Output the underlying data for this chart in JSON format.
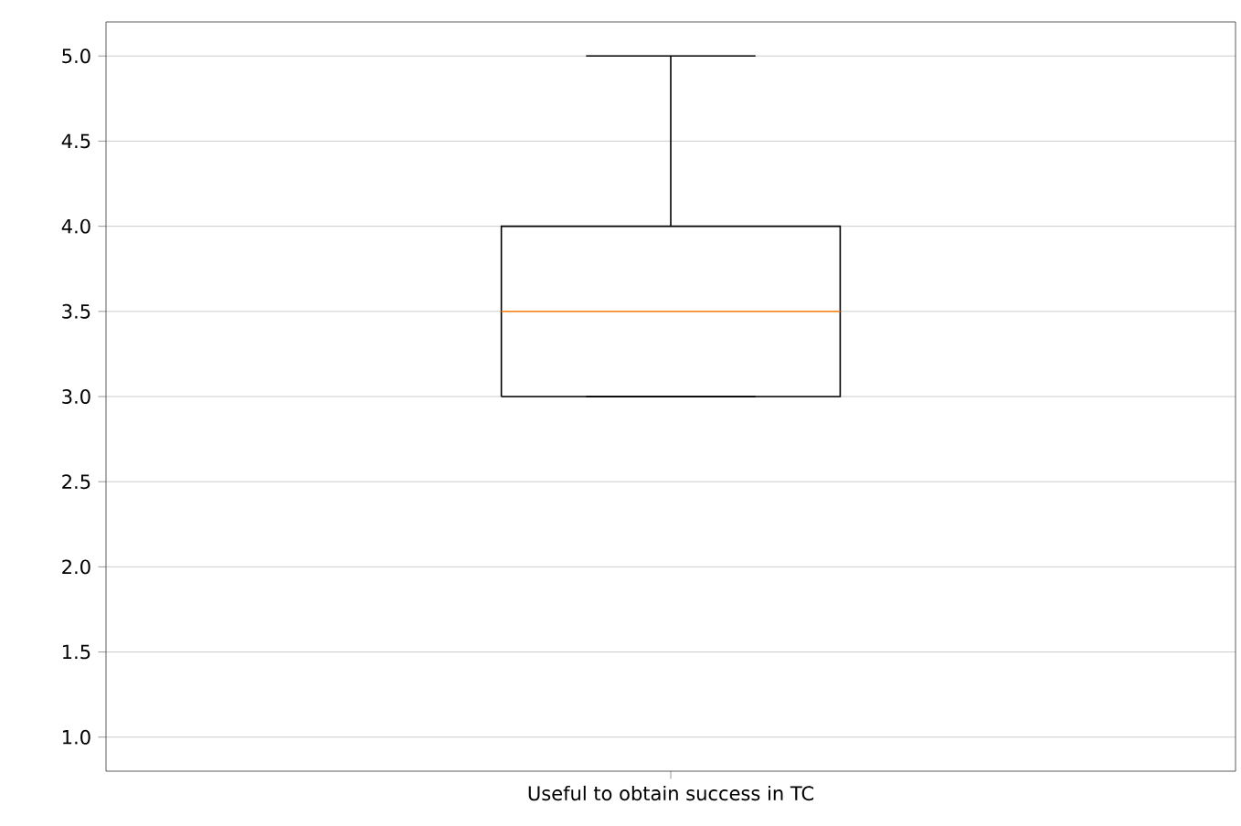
{
  "chart_data": {
    "type": "box",
    "categories": [
      "Useful to obtain success in TC"
    ],
    "boxes": [
      {
        "low": 3,
        "q1": 3,
        "median": 3.5,
        "q3": 4,
        "high": 5
      }
    ],
    "color": "#000000",
    "ylim": [
      0.8,
      5.2
    ],
    "yticks": [
      {
        "value": 1,
        "label": "1.0"
      },
      {
        "value": 1.5,
        "label": "1.5"
      },
      {
        "value": 2,
        "label": "2.0"
      },
      {
        "value": 2.5,
        "label": "2.5"
      },
      {
        "value": 3,
        "label": "3.0"
      },
      {
        "value": 3.5,
        "label": "3.5"
      },
      {
        "value": 4,
        "label": "4.0"
      },
      {
        "value": 4.5,
        "label": "4.5"
      },
      {
        "value": 5,
        "label": "5.0"
      }
    ],
    "grid": "y"
  }
}
